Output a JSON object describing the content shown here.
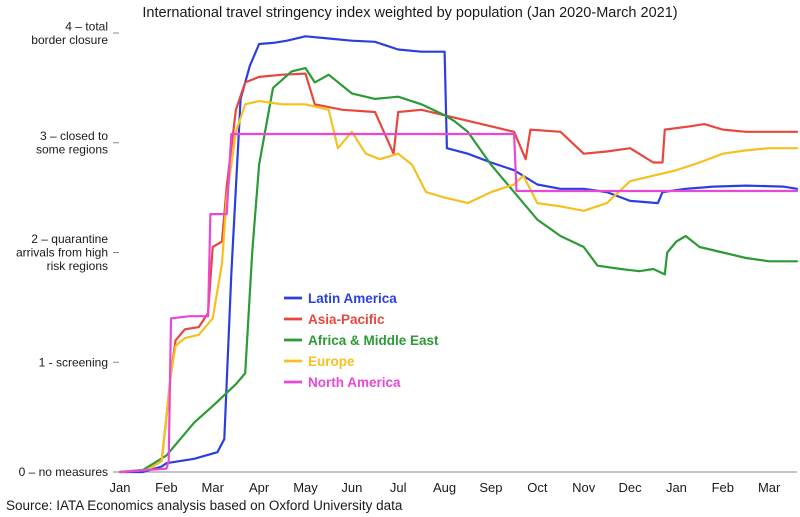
{
  "chart_data": {
    "type": "line",
    "title": "International travel stringency index weighted by population (Jan 2020-March 2021)",
    "source": "Source: IATA Economics analysis based on Oxford University data",
    "x_ticks": [
      "Jan",
      "Feb",
      "Mar",
      "Apr",
      "May",
      "Jun",
      "Jul",
      "Aug",
      "Sep",
      "Oct",
      "Nov",
      "Dec",
      "Jan",
      "Feb",
      "Mar"
    ],
    "y_ticks": [
      {
        "value": 4,
        "lines": [
          "4 – total",
          "border closure"
        ]
      },
      {
        "value": 3,
        "lines": [
          "3 – closed to",
          "some  regions"
        ]
      },
      {
        "value": 2,
        "lines": [
          "2 – quarantine",
          "arrivals from high",
          "risk regions"
        ]
      },
      {
        "value": 1,
        "lines": [
          "1 - screening"
        ]
      },
      {
        "value": 0,
        "lines": [
          "0 – no measures"
        ]
      }
    ],
    "ylim": [
      0,
      4
    ],
    "x_unit": "months since Jan 2020",
    "xlim": [
      0,
      14.6
    ],
    "grid": false,
    "legend_position": "center-left",
    "series": [
      {
        "name": "Latin America",
        "color": "#2b3fe0",
        "points": [
          [
            0,
            0
          ],
          [
            0.5,
            0
          ],
          [
            0.9,
            0.05
          ],
          [
            1.0,
            0.08
          ],
          [
            1.6,
            0.12
          ],
          [
            2.1,
            0.18
          ],
          [
            2.25,
            0.3
          ],
          [
            2.4,
            1.8
          ],
          [
            2.6,
            3.4
          ],
          [
            2.8,
            3.7
          ],
          [
            3.0,
            3.9
          ],
          [
            3.3,
            3.91
          ],
          [
            3.6,
            3.93
          ],
          [
            4.0,
            3.97
          ],
          [
            4.5,
            3.95
          ],
          [
            5.0,
            3.93
          ],
          [
            5.5,
            3.92
          ],
          [
            6.0,
            3.85
          ],
          [
            6.5,
            3.83
          ],
          [
            7.0,
            3.83
          ],
          [
            7.05,
            2.95
          ],
          [
            7.5,
            2.9
          ],
          [
            8.0,
            2.82
          ],
          [
            8.5,
            2.75
          ],
          [
            9.0,
            2.62
          ],
          [
            9.5,
            2.58
          ],
          [
            10.0,
            2.58
          ],
          [
            10.5,
            2.55
          ],
          [
            11.0,
            2.47
          ],
          [
            11.6,
            2.45
          ],
          [
            11.7,
            2.55
          ],
          [
            12.2,
            2.58
          ],
          [
            12.8,
            2.6
          ],
          [
            13.5,
            2.61
          ],
          [
            14.3,
            2.6
          ],
          [
            14.6,
            2.58
          ]
        ]
      },
      {
        "name": "Asia-Pacific",
        "color": "#e8473d",
        "points": [
          [
            0,
            0
          ],
          [
            0.6,
            0.02
          ],
          [
            0.9,
            0.1
          ],
          [
            1.0,
            0.5
          ],
          [
            1.1,
            0.9
          ],
          [
            1.2,
            1.2
          ],
          [
            1.4,
            1.3
          ],
          [
            1.7,
            1.32
          ],
          [
            1.9,
            1.45
          ],
          [
            2.0,
            2.05
          ],
          [
            2.2,
            2.1
          ],
          [
            2.3,
            2.6
          ],
          [
            2.5,
            3.3
          ],
          [
            2.7,
            3.55
          ],
          [
            3.0,
            3.6
          ],
          [
            3.5,
            3.62
          ],
          [
            4.0,
            3.63
          ],
          [
            4.2,
            3.35
          ],
          [
            4.8,
            3.3
          ],
          [
            5.5,
            3.28
          ],
          [
            5.9,
            2.9
          ],
          [
            6.0,
            3.28
          ],
          [
            6.5,
            3.3
          ],
          [
            7.0,
            3.25
          ],
          [
            7.5,
            3.2
          ],
          [
            8.0,
            3.15
          ],
          [
            8.5,
            3.1
          ],
          [
            8.75,
            2.85
          ],
          [
            8.85,
            3.12
          ],
          [
            9.5,
            3.1
          ],
          [
            10.0,
            2.9
          ],
          [
            10.5,
            2.92
          ],
          [
            11.0,
            2.95
          ],
          [
            11.5,
            2.82
          ],
          [
            11.7,
            2.82
          ],
          [
            11.75,
            3.12
          ],
          [
            12.3,
            3.15
          ],
          [
            12.6,
            3.17
          ],
          [
            13.0,
            3.12
          ],
          [
            13.5,
            3.1
          ],
          [
            14.0,
            3.1
          ],
          [
            14.6,
            3.1
          ]
        ]
      },
      {
        "name": "Africa & Middle East",
        "color": "#2c9a35",
        "points": [
          [
            0,
            0
          ],
          [
            0.5,
            0.02
          ],
          [
            1.0,
            0.15
          ],
          [
            1.3,
            0.3
          ],
          [
            1.6,
            0.45
          ],
          [
            2.0,
            0.6
          ],
          [
            2.5,
            0.8
          ],
          [
            2.7,
            0.9
          ],
          [
            2.85,
            2.0
          ],
          [
            3.0,
            2.8
          ],
          [
            3.3,
            3.5
          ],
          [
            3.7,
            3.65
          ],
          [
            4.0,
            3.68
          ],
          [
            4.2,
            3.55
          ],
          [
            4.5,
            3.62
          ],
          [
            5.0,
            3.45
          ],
          [
            5.5,
            3.4
          ],
          [
            6.0,
            3.42
          ],
          [
            6.5,
            3.35
          ],
          [
            7.0,
            3.25
          ],
          [
            7.2,
            3.2
          ],
          [
            7.5,
            3.1
          ],
          [
            8.0,
            2.8
          ],
          [
            8.5,
            2.55
          ],
          [
            9.0,
            2.3
          ],
          [
            9.5,
            2.15
          ],
          [
            10.0,
            2.05
          ],
          [
            10.3,
            1.88
          ],
          [
            10.8,
            1.85
          ],
          [
            11.2,
            1.83
          ],
          [
            11.5,
            1.85
          ],
          [
            11.75,
            1.8
          ],
          [
            11.8,
            2.0
          ],
          [
            12.0,
            2.1
          ],
          [
            12.2,
            2.15
          ],
          [
            12.5,
            2.05
          ],
          [
            13.0,
            2.0
          ],
          [
            13.5,
            1.95
          ],
          [
            14.0,
            1.92
          ],
          [
            14.6,
            1.92
          ]
        ]
      },
      {
        "name": "Europe",
        "color": "#f5c020",
        "points": [
          [
            0,
            0
          ],
          [
            0.6,
            0.02
          ],
          [
            0.9,
            0.1
          ],
          [
            1.0,
            0.5
          ],
          [
            1.1,
            0.9
          ],
          [
            1.2,
            1.15
          ],
          [
            1.4,
            1.22
          ],
          [
            1.7,
            1.25
          ],
          [
            2.0,
            1.4
          ],
          [
            2.2,
            1.9
          ],
          [
            2.3,
            2.5
          ],
          [
            2.5,
            3.1
          ],
          [
            2.7,
            3.35
          ],
          [
            3.0,
            3.38
          ],
          [
            3.5,
            3.35
          ],
          [
            4.0,
            3.35
          ],
          [
            4.5,
            3.3
          ],
          [
            4.7,
            2.95
          ],
          [
            5.0,
            3.1
          ],
          [
            5.3,
            2.9
          ],
          [
            5.6,
            2.85
          ],
          [
            6.0,
            2.9
          ],
          [
            6.3,
            2.8
          ],
          [
            6.6,
            2.55
          ],
          [
            7.0,
            2.5
          ],
          [
            7.5,
            2.45
          ],
          [
            8.0,
            2.55
          ],
          [
            8.5,
            2.62
          ],
          [
            8.7,
            2.7
          ],
          [
            9.0,
            2.45
          ],
          [
            9.5,
            2.42
          ],
          [
            10.0,
            2.38
          ],
          [
            10.5,
            2.45
          ],
          [
            11.0,
            2.65
          ],
          [
            11.5,
            2.7
          ],
          [
            12.0,
            2.75
          ],
          [
            12.5,
            2.82
          ],
          [
            13.0,
            2.9
          ],
          [
            13.5,
            2.93
          ],
          [
            14.0,
            2.95
          ],
          [
            14.6,
            2.95
          ]
        ]
      },
      {
        "name": "North America",
        "color": "#e848d8",
        "points": [
          [
            0,
            0
          ],
          [
            1.0,
            0.03
          ],
          [
            1.05,
            0.1
          ],
          [
            1.1,
            1.4
          ],
          [
            1.5,
            1.42
          ],
          [
            1.9,
            1.42
          ],
          [
            1.95,
            2.35
          ],
          [
            2.3,
            2.35
          ],
          [
            2.4,
            3.08
          ],
          [
            5.0,
            3.08
          ],
          [
            8.0,
            3.08
          ],
          [
            8.5,
            3.08
          ],
          [
            8.55,
            2.56
          ],
          [
            10.0,
            2.56
          ],
          [
            12.0,
            2.56
          ],
          [
            14.6,
            2.56
          ]
        ]
      }
    ]
  }
}
